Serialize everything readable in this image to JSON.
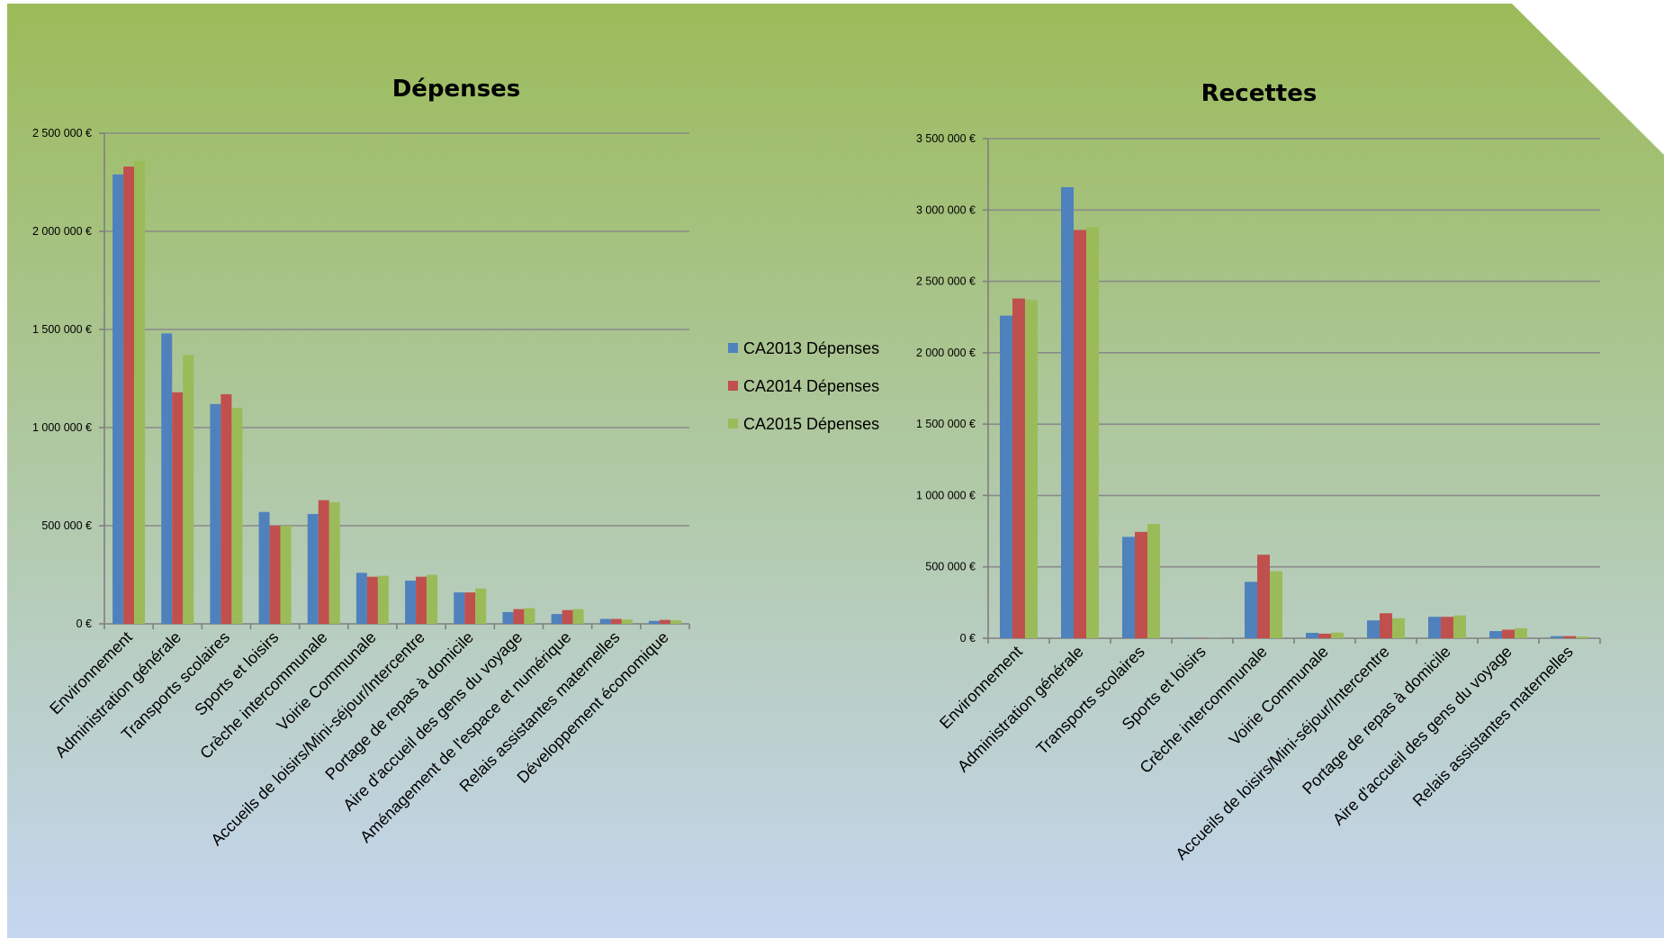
{
  "colors": {
    "panel_top": "#9bbb59",
    "panel_bottom": "#c5d6f0",
    "series": [
      "#4f81bd",
      "#c0504d",
      "#9bbb59"
    ]
  },
  "legend": {
    "entries": [
      "CA2013 Dépenses",
      "CA2014 Dépenses",
      "CA2015 Dépenses"
    ],
    "placement": "center (between the two charts)"
  },
  "chart_data": [
    {
      "type": "bar",
      "title": "Dépenses",
      "xlabel": "",
      "ylabel": "",
      "ylim": [
        0,
        2500000
      ],
      "yticks": [
        0,
        500000,
        1000000,
        1500000,
        2000000,
        2500000
      ],
      "ytick_labels": [
        "0 €",
        "500 000 €",
        "1 000 000 €",
        "1 500 000 €",
        "2 000 000 €",
        "2 500 000 €"
      ],
      "grid": true,
      "categories": [
        "Environnement",
        "Administration générale",
        "Transports scolaires",
        "Sports et loisirs",
        "Crèche intercommunale",
        "Voirie Communale",
        "Accueils de loisirs/Mini-séjour/Intercentre",
        "Portage de repas à domicile",
        "Aire d'accueil des gens du voyage",
        "Aménagement de l'espace et numérique",
        "Relais assistantes maternelles",
        "Développement économique"
      ],
      "series": [
        {
          "name": "CA2013 Dépenses",
          "values": [
            2290000,
            1480000,
            1120000,
            570000,
            560000,
            260000,
            220000,
            160000,
            60000,
            50000,
            25000,
            15000
          ]
        },
        {
          "name": "CA2014 Dépenses",
          "values": [
            2330000,
            1180000,
            1170000,
            500000,
            630000,
            240000,
            240000,
            160000,
            75000,
            70000,
            25000,
            20000
          ]
        },
        {
          "name": "CA2015 Dépenses",
          "values": [
            2360000,
            1370000,
            1100000,
            500000,
            620000,
            245000,
            250000,
            180000,
            80000,
            75000,
            22000,
            18000
          ]
        }
      ]
    },
    {
      "type": "bar",
      "title": "Recettes",
      "xlabel": "",
      "ylabel": "",
      "ylim": [
        0,
        3500000
      ],
      "yticks": [
        0,
        500000,
        1000000,
        1500000,
        2000000,
        2500000,
        3000000,
        3500000
      ],
      "ytick_labels": [
        "0 €",
        "500 000 €",
        "1 000 000 €",
        "1 500 000 €",
        "2 000 000 €",
        "2 500 000 €",
        "3 000 000 €",
        "3 500 000 €"
      ],
      "grid": true,
      "categories": [
        "Environnement",
        "Administration générale",
        "Transports scolaires",
        "Sports et loisirs",
        "Crèche intercommunale",
        "Voirie Communale",
        "Accueils de loisirs/Mini-séjour/Intercentre",
        "Portage de repas à domicile",
        "Aire d'accueil des gens du voyage",
        "Relais assistantes maternelles"
      ],
      "series": [
        {
          "name": "CA2013 Dépenses",
          "values": [
            2260000,
            3160000,
            710000,
            3000,
            395000,
            38000,
            125000,
            150000,
            50000,
            15000
          ]
        },
        {
          "name": "CA2014 Dépenses",
          "values": [
            2380000,
            2860000,
            745000,
            2000,
            585000,
            32000,
            175000,
            150000,
            60000,
            15000
          ]
        },
        {
          "name": "CA2015 Dépenses",
          "values": [
            2370000,
            2880000,
            800000,
            2000,
            470000,
            40000,
            140000,
            160000,
            70000,
            12000
          ]
        }
      ]
    }
  ]
}
